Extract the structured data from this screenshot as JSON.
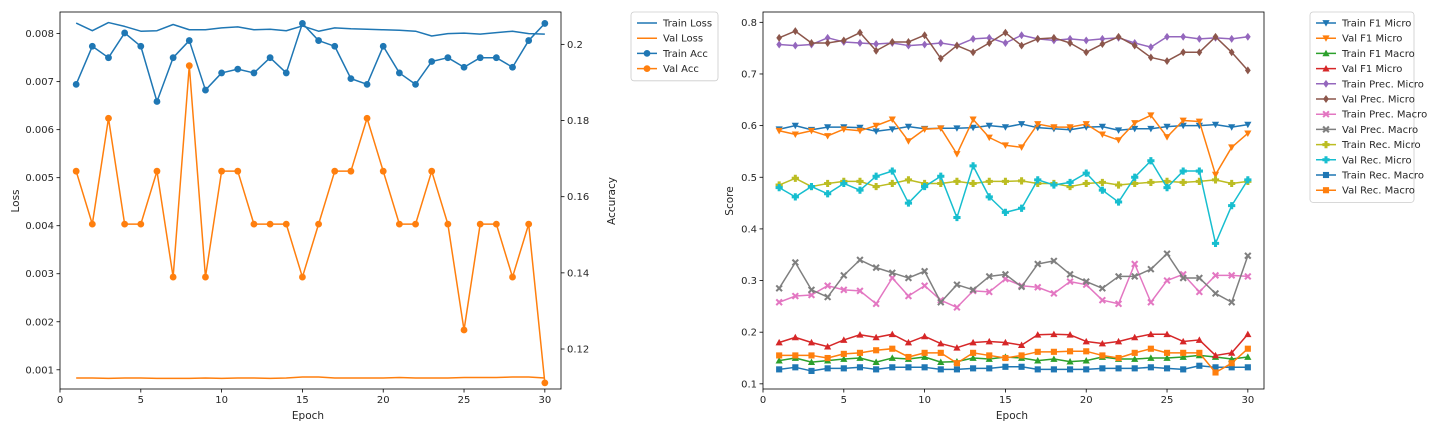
{
  "chart_data": [
    {
      "type": "line",
      "xlabel": "Epoch",
      "ylabel": "Loss",
      "y2label": "Accuracy",
      "xlim": [
        0,
        31
      ],
      "ylim": [
        0.0006,
        0.00845
      ],
      "y2lim": [
        0.1095,
        0.2085
      ],
      "xticks": [
        0,
        5,
        10,
        15,
        20,
        25,
        30
      ],
      "yticks": [
        0.001,
        0.002,
        0.003,
        0.004,
        0.005,
        0.006,
        0.007,
        0.008
      ],
      "y2ticks": [
        0.12,
        0.14,
        0.16,
        0.18,
        0.2
      ],
      "grid": false,
      "legend_position": "outside-right",
      "x": [
        1,
        2,
        3,
        4,
        5,
        6,
        7,
        8,
        9,
        10,
        11,
        12,
        13,
        14,
        15,
        16,
        17,
        18,
        19,
        20,
        21,
        22,
        23,
        24,
        25,
        26,
        27,
        28,
        29,
        30
      ],
      "series": [
        {
          "name": "Train Loss",
          "axis": "left",
          "color": "#1f77b4",
          "marker": "none",
          "values": [
            0.00822,
            0.00806,
            0.00823,
            0.00815,
            0.00805,
            0.00806,
            0.00819,
            0.00808,
            0.00808,
            0.00812,
            0.00814,
            0.00808,
            0.00809,
            0.00806,
            0.00816,
            0.00805,
            0.00812,
            0.0081,
            0.00809,
            0.00808,
            0.00807,
            0.00805,
            0.00795,
            0.008,
            0.00801,
            0.00799,
            0.00802,
            0.00805,
            0.008,
            0.00799
          ]
        },
        {
          "name": "Val Loss",
          "axis": "left",
          "color": "#ff7f0e",
          "marker": "none",
          "values": [
            0.00083,
            0.00083,
            0.00082,
            0.00083,
            0.00083,
            0.00082,
            0.00082,
            0.00082,
            0.00083,
            0.00082,
            0.00083,
            0.00083,
            0.00082,
            0.00083,
            0.00085,
            0.00085,
            0.00083,
            0.00083,
            0.00083,
            0.00083,
            0.00084,
            0.00083,
            0.00083,
            0.00083,
            0.00084,
            0.00084,
            0.00084,
            0.00085,
            0.00085,
            0.00083
          ]
        },
        {
          "name": "Train Acc",
          "axis": "right",
          "color": "#1f77b4",
          "marker": "circle",
          "values": [
            0.1895,
            0.1995,
            0.1965,
            0.203,
            0.1995,
            0.185,
            0.1965,
            0.201,
            0.188,
            0.1925,
            0.1935,
            0.1925,
            0.1965,
            0.1925,
            0.2055,
            0.201,
            0.1995,
            0.191,
            0.1895,
            0.1995,
            0.1925,
            0.1895,
            0.1955,
            0.1965,
            0.194,
            0.1965,
            0.1965,
            0.194,
            0.201,
            0.2055
          ]
        },
        {
          "name": "Val Acc",
          "axis": "right",
          "color": "#ff7f0e",
          "marker": "circle",
          "values": [
            0.1667,
            0.1528,
            0.1806,
            0.1528,
            0.1528,
            0.1667,
            0.1389,
            0.1944,
            0.1389,
            0.1667,
            0.1667,
            0.1528,
            0.1528,
            0.1528,
            0.1389,
            0.1528,
            0.1667,
            0.1667,
            0.1806,
            0.1667,
            0.1528,
            0.1528,
            0.1667,
            0.1528,
            0.125,
            0.1528,
            0.1528,
            0.1389,
            0.1528,
            0.1111
          ]
        }
      ]
    },
    {
      "type": "line",
      "xlabel": "Epoch",
      "ylabel": "Score",
      "xlim": [
        0,
        31
      ],
      "ylim": [
        0.09,
        0.82
      ],
      "xticks": [
        0,
        5,
        10,
        15,
        20,
        25,
        30
      ],
      "yticks": [
        0.1,
        0.2,
        0.3,
        0.4,
        0.5,
        0.6,
        0.7,
        0.8
      ],
      "grid": false,
      "legend_position": "outside-right",
      "x": [
        1,
        2,
        3,
        4,
        5,
        6,
        7,
        8,
        9,
        10,
        11,
        12,
        13,
        14,
        15,
        16,
        17,
        18,
        19,
        20,
        21,
        22,
        23,
        24,
        25,
        26,
        27,
        28,
        29,
        30
      ],
      "series": [
        {
          "name": "Train F1 Micro",
          "color": "#1f77b4",
          "marker": "triangle-down",
          "values": [
            0.593,
            0.6,
            0.592,
            0.597,
            0.597,
            0.596,
            0.589,
            0.593,
            0.598,
            0.594,
            0.595,
            0.595,
            0.596,
            0.6,
            0.597,
            0.603,
            0.596,
            0.594,
            0.592,
            0.597,
            0.598,
            0.591,
            0.594,
            0.594,
            0.598,
            0.6,
            0.6,
            0.602,
            0.597,
            0.602
          ]
        },
        {
          "name": "Val F1 Micro",
          "color": "#ff7f0e",
          "marker": "triangle-down",
          "values": [
            0.59,
            0.583,
            0.59,
            0.58,
            0.593,
            0.59,
            0.6,
            0.612,
            0.57,
            0.593,
            0.595,
            0.545,
            0.612,
            0.577,
            0.562,
            0.558,
            0.603,
            0.597,
            0.597,
            0.603,
            0.583,
            0.572,
            0.605,
            0.62,
            0.578,
            0.61,
            0.608,
            0.505,
            0.558,
            0.585
          ]
        },
        {
          "name": "Train F1 Macro",
          "color": "#2ca02c",
          "marker": "triangle-up",
          "values": [
            0.145,
            0.15,
            0.142,
            0.145,
            0.148,
            0.15,
            0.142,
            0.15,
            0.148,
            0.152,
            0.142,
            0.143,
            0.15,
            0.148,
            0.152,
            0.15,
            0.145,
            0.148,
            0.143,
            0.145,
            0.152,
            0.148,
            0.148,
            0.15,
            0.15,
            0.152,
            0.155,
            0.152,
            0.148,
            0.152
          ]
        },
        {
          "name": "Val F1 Micro",
          "color": "#d62728",
          "marker": "triangle-up",
          "values": [
            0.18,
            0.19,
            0.18,
            0.172,
            0.185,
            0.195,
            0.19,
            0.196,
            0.18,
            0.192,
            0.178,
            0.17,
            0.18,
            0.182,
            0.18,
            0.175,
            0.195,
            0.196,
            0.195,
            0.182,
            0.178,
            0.182,
            0.19,
            0.196,
            0.196,
            0.182,
            0.185,
            0.155,
            0.16,
            0.196
          ]
        },
        {
          "name": "Train Prec. Micro",
          "color": "#9467bd",
          "marker": "diamond",
          "values": [
            0.757,
            0.755,
            0.757,
            0.77,
            0.762,
            0.76,
            0.758,
            0.76,
            0.755,
            0.757,
            0.76,
            0.755,
            0.768,
            0.77,
            0.76,
            0.775,
            0.768,
            0.765,
            0.768,
            0.765,
            0.768,
            0.77,
            0.76,
            0.752,
            0.772,
            0.772,
            0.768,
            0.77,
            0.768,
            0.772
          ]
        },
        {
          "name": "Val Prec. Micro",
          "color": "#8c564b",
          "marker": "diamond",
          "values": [
            0.77,
            0.783,
            0.76,
            0.76,
            0.765,
            0.78,
            0.745,
            0.762,
            0.762,
            0.775,
            0.73,
            0.755,
            0.742,
            0.76,
            0.78,
            0.755,
            0.768,
            0.77,
            0.76,
            0.742,
            0.758,
            0.772,
            0.755,
            0.732,
            0.725,
            0.742,
            0.742,
            0.772,
            0.742,
            0.707
          ]
        },
        {
          "name": "Train Prec. Macro",
          "color": "#e377c2",
          "marker": "x",
          "values": [
            0.258,
            0.27,
            0.272,
            0.29,
            0.282,
            0.28,
            0.255,
            0.305,
            0.27,
            0.29,
            0.262,
            0.248,
            0.28,
            0.278,
            0.303,
            0.29,
            0.287,
            0.275,
            0.298,
            0.292,
            0.262,
            0.255,
            0.332,
            0.258,
            0.3,
            0.312,
            0.278,
            0.31,
            0.31,
            0.308
          ]
        },
        {
          "name": "Val Prec. Macro",
          "color": "#7f7f7f",
          "marker": "x",
          "values": [
            0.285,
            0.335,
            0.282,
            0.268,
            0.31,
            0.34,
            0.325,
            0.315,
            0.305,
            0.318,
            0.258,
            0.292,
            0.282,
            0.308,
            0.312,
            0.288,
            0.332,
            0.338,
            0.312,
            0.298,
            0.285,
            0.308,
            0.308,
            0.322,
            0.352,
            0.305,
            0.305,
            0.275,
            0.258,
            0.348
          ]
        },
        {
          "name": "Train Rec. Micro",
          "color": "#bcbd22",
          "marker": "plus",
          "values": [
            0.485,
            0.498,
            0.482,
            0.488,
            0.492,
            0.492,
            0.482,
            0.488,
            0.495,
            0.488,
            0.488,
            0.492,
            0.488,
            0.492,
            0.492,
            0.493,
            0.488,
            0.488,
            0.482,
            0.488,
            0.49,
            0.485,
            0.488,
            0.49,
            0.492,
            0.49,
            0.492,
            0.495,
            0.488,
            0.492
          ]
        },
        {
          "name": "Val Rec. Micro",
          "color": "#17becf",
          "marker": "plus",
          "values": [
            0.48,
            0.462,
            0.482,
            0.468,
            0.488,
            0.475,
            0.502,
            0.512,
            0.45,
            0.482,
            0.502,
            0.422,
            0.522,
            0.462,
            0.432,
            0.44,
            0.495,
            0.485,
            0.49,
            0.508,
            0.475,
            0.452,
            0.5,
            0.532,
            0.48,
            0.512,
            0.512,
            0.372,
            0.445,
            0.495
          ]
        },
        {
          "name": "Train Rec. Macro",
          "color": "#1f77b4",
          "marker": "square",
          "values": [
            0.128,
            0.132,
            0.125,
            0.13,
            0.13,
            0.132,
            0.128,
            0.132,
            0.132,
            0.132,
            0.128,
            0.128,
            0.13,
            0.13,
            0.133,
            0.133,
            0.128,
            0.128,
            0.128,
            0.128,
            0.13,
            0.13,
            0.13,
            0.132,
            0.13,
            0.128,
            0.135,
            0.132,
            0.132,
            0.132
          ]
        },
        {
          "name": "Val Rec. Macro",
          "color": "#ff7f0e",
          "marker": "square",
          "values": [
            0.155,
            0.155,
            0.155,
            0.15,
            0.158,
            0.16,
            0.165,
            0.168,
            0.152,
            0.16,
            0.16,
            0.14,
            0.16,
            0.155,
            0.15,
            0.155,
            0.162,
            0.162,
            0.163,
            0.163,
            0.155,
            0.15,
            0.16,
            0.168,
            0.16,
            0.16,
            0.16,
            0.122,
            0.14,
            0.168
          ]
        }
      ]
    }
  ]
}
